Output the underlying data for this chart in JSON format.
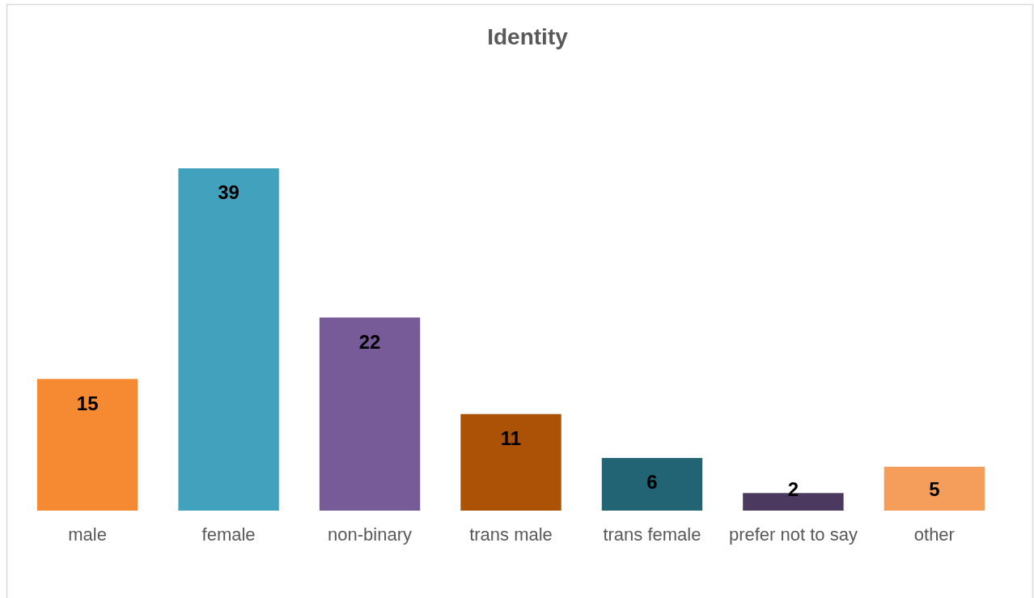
{
  "chart_data": {
    "type": "bar",
    "title": "Identity",
    "categories": [
      "male",
      "female",
      "non-binary",
      "trans male",
      "trans female",
      "prefer not to say",
      "other"
    ],
    "values": [
      15,
      39,
      22,
      11,
      6,
      2,
      5
    ],
    "colors": [
      "#f58a32",
      "#42a2bd",
      "#775a98",
      "#ab5206",
      "#236474",
      "#4b395f",
      "#f59d5b"
    ],
    "data_labels": true
  }
}
